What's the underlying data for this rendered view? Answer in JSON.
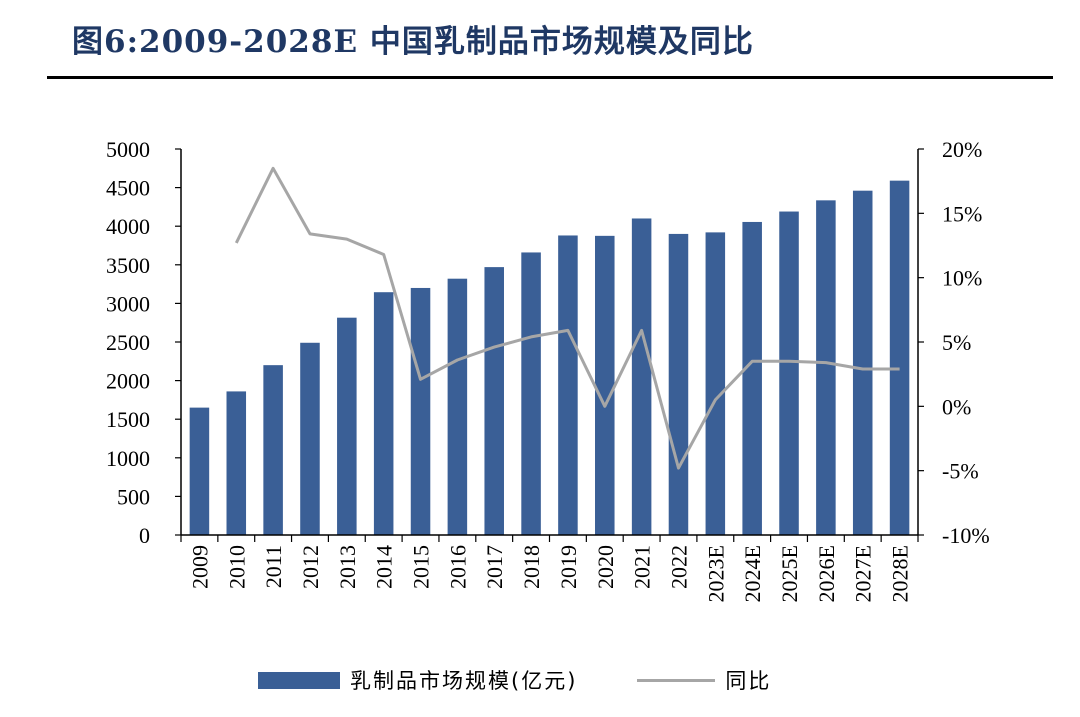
{
  "header": {
    "title": "图6:2009-2028E 中国乳制品市场规模及同比"
  },
  "colors": {
    "bar": "#3a5f96",
    "line": "#a6a6a6",
    "title": "#1f3864"
  },
  "chart_data": {
    "type": "bar",
    "categories": [
      "2009",
      "2010",
      "2011",
      "2012",
      "2013",
      "2014",
      "2015",
      "2016",
      "2017",
      "2018",
      "2019",
      "2020",
      "2021",
      "2022",
      "2023E",
      "2024E",
      "2025E",
      "2026E",
      "2027E",
      "2028E"
    ],
    "series": [
      {
        "name": "乳制品市场规模(亿元)",
        "type": "bar",
        "axis": "left",
        "values": [
          1650,
          1860,
          2200,
          2490,
          2815,
          3145,
          3200,
          3320,
          3470,
          3660,
          3880,
          3875,
          4100,
          3900,
          3920,
          4055,
          4190,
          4335,
          4460,
          4590
        ]
      },
      {
        "name": "同比",
        "type": "line",
        "axis": "right",
        "values": [
          null,
          12.7,
          18.5,
          13.4,
          13.0,
          11.8,
          2.1,
          3.6,
          4.6,
          5.4,
          5.9,
          0.0,
          5.9,
          -4.8,
          0.5,
          3.5,
          3.5,
          3.4,
          2.9,
          2.9
        ]
      }
    ],
    "y_left": {
      "min": 0,
      "max": 5000,
      "ticks": [
        "0",
        "500",
        "1000",
        "1500",
        "2000",
        "2500",
        "3000",
        "3500",
        "4000",
        "4500",
        "5000"
      ]
    },
    "y_right": {
      "min": -10,
      "max": 20,
      "ticks": [
        "-10%",
        "-5%",
        "0%",
        "5%",
        "10%",
        "15%",
        "20%"
      ]
    },
    "grid": false,
    "legend_position": "bottom"
  }
}
